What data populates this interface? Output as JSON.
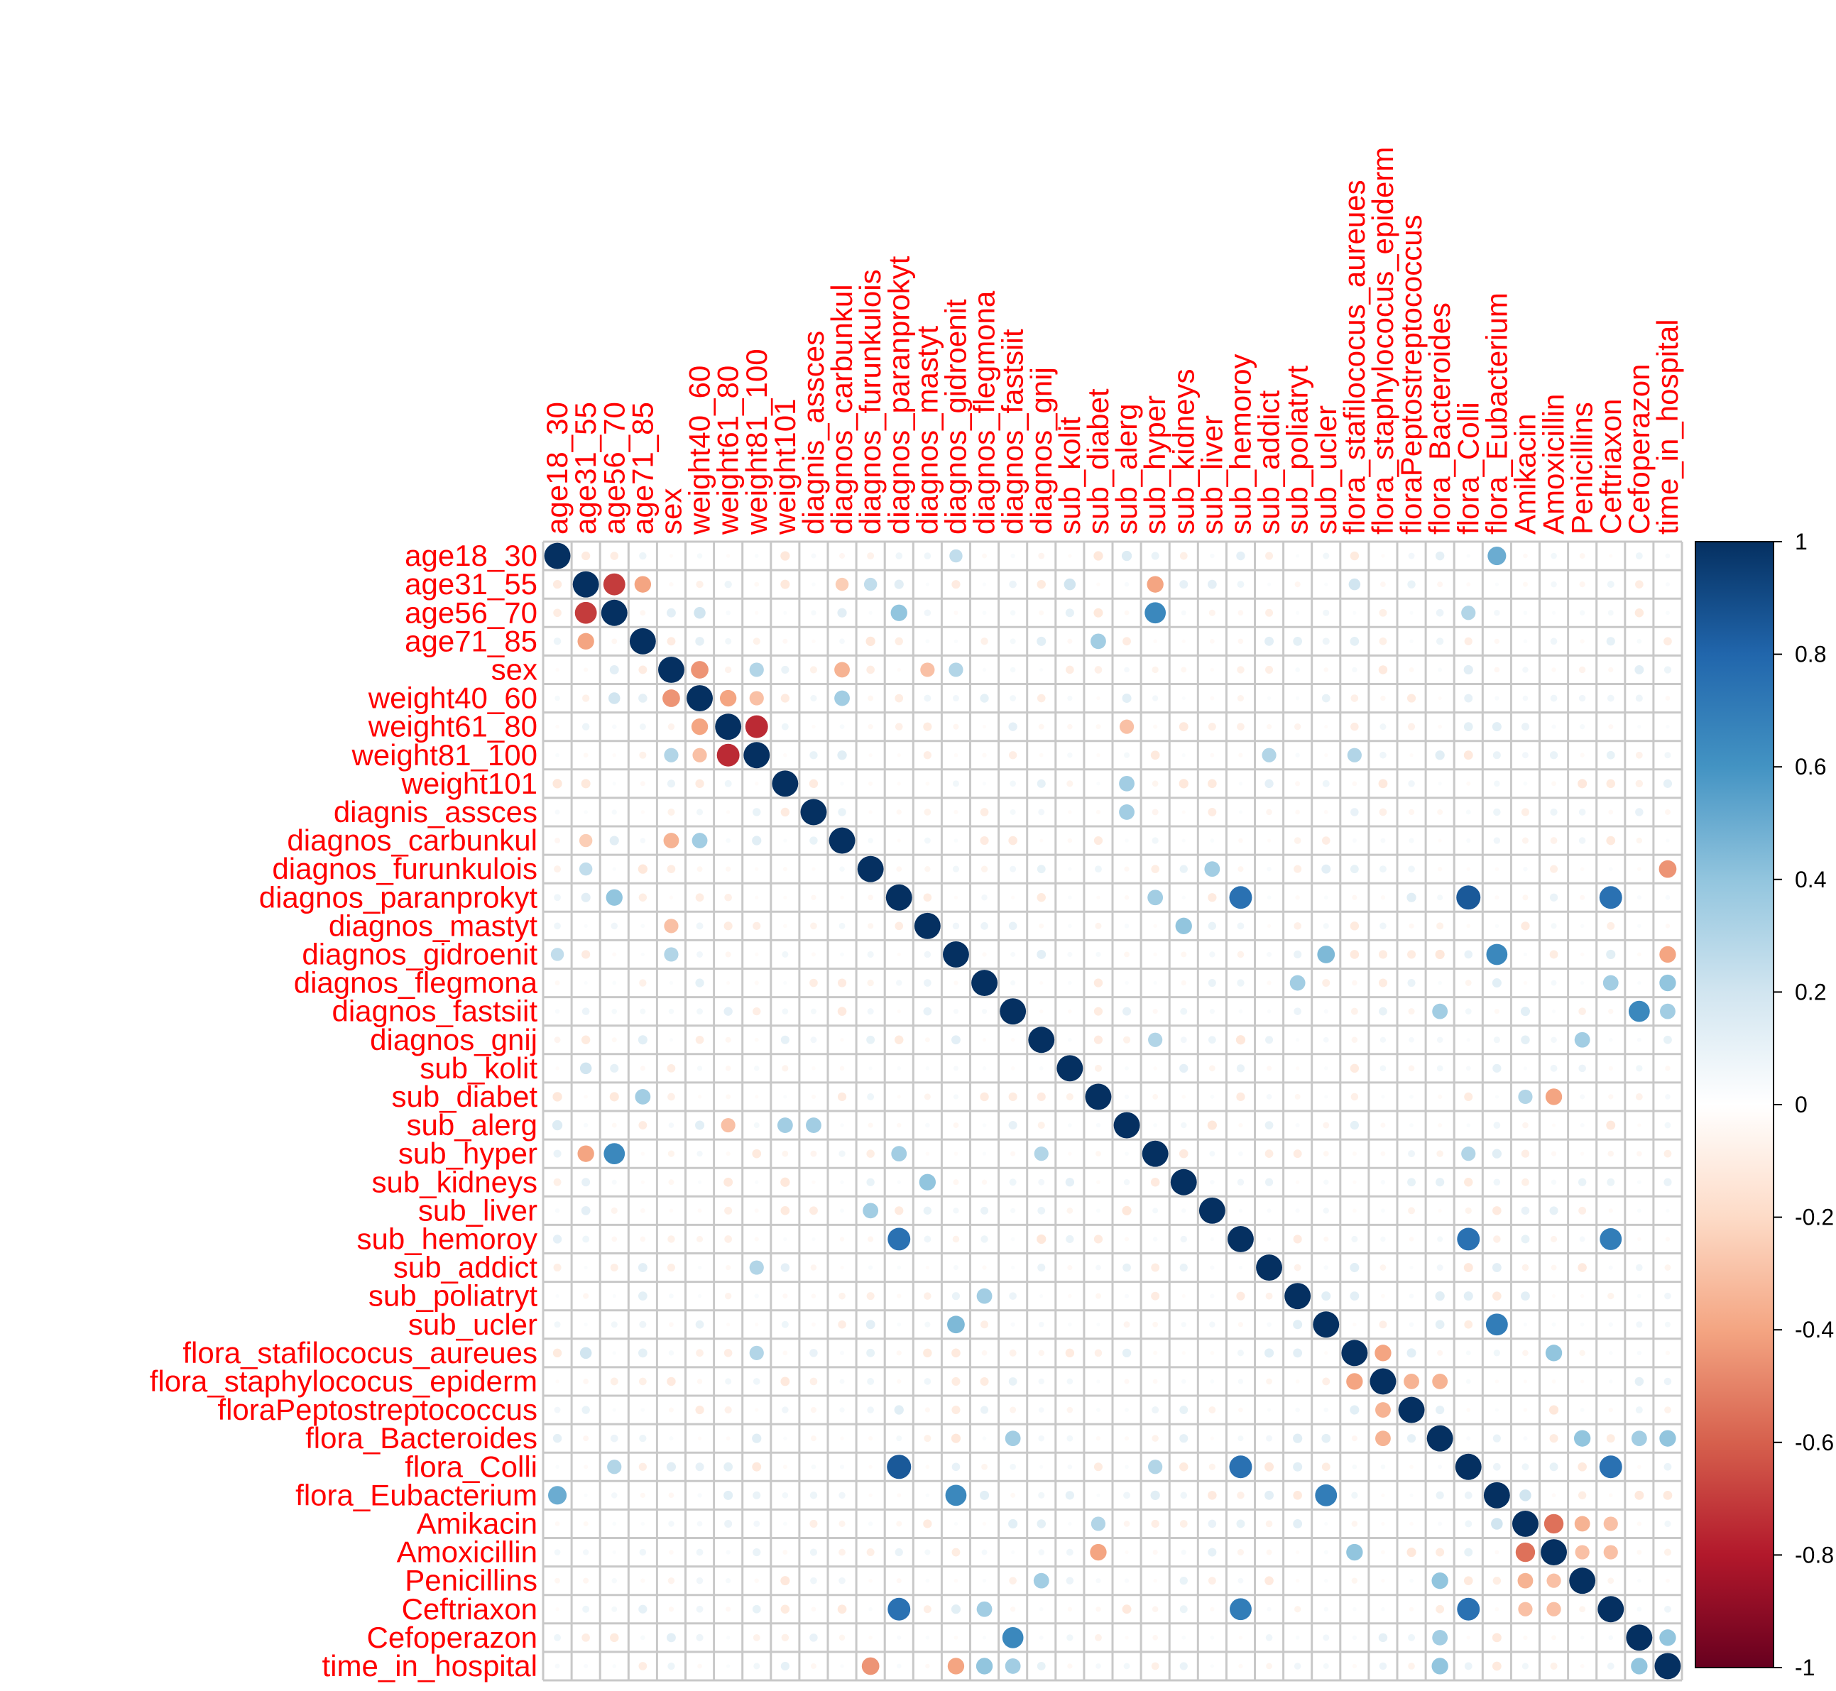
{
  "chart_data": {
    "type": "heatmap",
    "title": "",
    "variables": [
      "age18_30",
      "age31_55",
      "age56_70",
      "age71_85",
      "sex",
      "weight40_60",
      "weight61_80",
      "weight81_100",
      "weight101",
      "diagnis_assces",
      "diagnos_carbunkul",
      "diagnos_furunkulois",
      "diagnos_paranprokyt",
      "diagnos_mastyt",
      "diagnos_gidroenit",
      "diagnos_flegmona",
      "diagnos_fastsiit",
      "diagnos_gnij",
      "sub_kolit",
      "sub_diabet",
      "sub_alerg",
      "sub_hyper",
      "sub_kidneys",
      "sub_liver",
      "sub_hemoroy",
      "sub_addict",
      "sub_poliatryt",
      "sub_ucler",
      "flora_stafilococus_aureues",
      "flora_staphylococus_epiderm",
      "floraPeptostreptococcus",
      "flora_Bacteroides",
      "flora_Colli",
      "flora_Eubacterium",
      "Amikacin",
      "Amoxicillin",
      "Penicillins",
      "Ceftriaxon",
      "Cefoperazon",
      "time_in_hospital"
    ],
    "correlations": [
      {
        "row": "age18_30",
        "col": "flora_Eubacterium",
        "value": 0.5
      },
      {
        "row": "age18_30",
        "col": "diagnos_gidroenit",
        "value": 0.25
      },
      {
        "row": "age18_30",
        "col": "sub_alerg",
        "value": 0.15
      },
      {
        "row": "age31_55",
        "col": "age56_70",
        "value": -0.7
      },
      {
        "row": "age31_55",
        "col": "age71_85",
        "value": -0.4
      },
      {
        "row": "age31_55",
        "col": "sub_hyper",
        "value": -0.4
      },
      {
        "row": "age31_55",
        "col": "diagnos_carbunkul",
        "value": -0.25
      },
      {
        "row": "age31_55",
        "col": "diagnos_furunkulois",
        "value": 0.25
      },
      {
        "row": "age31_55",
        "col": "flora_stafilococus_aureues",
        "value": 0.2
      },
      {
        "row": "age31_55",
        "col": "sub_kolit",
        "value": 0.2
      },
      {
        "row": "age56_70",
        "col": "sub_hyper",
        "value": 0.65
      },
      {
        "row": "age56_70",
        "col": "diagnos_paranprokyt",
        "value": 0.4
      },
      {
        "row": "age56_70",
        "col": "weight40_60",
        "value": 0.2
      },
      {
        "row": "age56_70",
        "col": "flora_Colli",
        "value": 0.3
      },
      {
        "row": "age71_85",
        "col": "sub_diabet",
        "value": 0.35
      },
      {
        "row": "sex",
        "col": "weight40_60",
        "value": -0.45
      },
      {
        "row": "sex",
        "col": "weight81_100",
        "value": 0.3
      },
      {
        "row": "sex",
        "col": "diagnos_carbunkul",
        "value": -0.35
      },
      {
        "row": "sex",
        "col": "diagnos_mastyt",
        "value": -0.3
      },
      {
        "row": "sex",
        "col": "diagnos_gidroenit",
        "value": 0.3
      },
      {
        "row": "weight40_60",
        "col": "weight61_80",
        "value": -0.4
      },
      {
        "row": "weight40_60",
        "col": "weight81_100",
        "value": -0.3
      },
      {
        "row": "weight40_60",
        "col": "diagnos_carbunkul",
        "value": 0.35
      },
      {
        "row": "weight61_80",
        "col": "weight81_100",
        "value": -0.75
      },
      {
        "row": "weight61_80",
        "col": "sub_alerg",
        "value": -0.3
      },
      {
        "row": "weight81_100",
        "col": "sub_addict",
        "value": 0.3
      },
      {
        "row": "weight81_100",
        "col": "flora_stafilococus_aureues",
        "value": 0.3
      },
      {
        "row": "weight101",
        "col": "sub_alerg",
        "value": 0.35
      },
      {
        "row": "diagnis_assces",
        "col": "sub_alerg",
        "value": 0.35
      },
      {
        "row": "diagnos_furunkulois",
        "col": "sub_liver",
        "value": 0.35
      },
      {
        "row": "diagnos_furunkulois",
        "col": "time_in_hospital",
        "value": -0.45
      },
      {
        "row": "diagnos_paranprokyt",
        "col": "sub_hemoroy",
        "value": 0.75
      },
      {
        "row": "diagnos_paranprokyt",
        "col": "flora_Colli",
        "value": 0.85
      },
      {
        "row": "diagnos_paranprokyt",
        "col": "Ceftriaxon",
        "value": 0.75
      },
      {
        "row": "diagnos_paranprokyt",
        "col": "sub_hyper",
        "value": 0.35
      },
      {
        "row": "diagnos_mastyt",
        "col": "sub_kidneys",
        "value": 0.4
      },
      {
        "row": "diagnos_gidroenit",
        "col": "flora_Eubacterium",
        "value": 0.65
      },
      {
        "row": "diagnos_gidroenit",
        "col": "sub_ucler",
        "value": 0.45
      },
      {
        "row": "diagnos_gidroenit",
        "col": "time_in_hospital",
        "value": -0.4
      },
      {
        "row": "diagnos_flegmona",
        "col": "sub_poliatryt",
        "value": 0.35
      },
      {
        "row": "diagnos_flegmona",
        "col": "Ceftriaxon",
        "value": 0.35
      },
      {
        "row": "diagnos_flegmona",
        "col": "time_in_hospital",
        "value": 0.4
      },
      {
        "row": "diagnos_fastsiit",
        "col": "Cefoperazon",
        "value": 0.65
      },
      {
        "row": "diagnos_fastsiit",
        "col": "time_in_hospital",
        "value": 0.35
      },
      {
        "row": "diagnos_fastsiit",
        "col": "flora_Bacteroides",
        "value": 0.35
      },
      {
        "row": "diagnos_gnij",
        "col": "Penicillins",
        "value": 0.35
      },
      {
        "row": "diagnos_gnij",
        "col": "sub_hyper",
        "value": 0.3
      },
      {
        "row": "sub_diabet",
        "col": "Amoxicillin",
        "value": -0.4
      },
      {
        "row": "sub_diabet",
        "col": "Amikacin",
        "value": 0.3
      },
      {
        "row": "sub_hyper",
        "col": "flora_Colli",
        "value": 0.3
      },
      {
        "row": "sub_hemoroy",
        "col": "flora_Colli",
        "value": 0.75
      },
      {
        "row": "sub_hemoroy",
        "col": "Ceftriaxon",
        "value": 0.7
      },
      {
        "row": "sub_ucler",
        "col": "flora_Eubacterium",
        "value": 0.7
      },
      {
        "row": "flora_stafilococus_aureues",
        "col": "flora_staphylococus_epiderm",
        "value": -0.4
      },
      {
        "row": "flora_stafilococus_aureues",
        "col": "Amoxicillin",
        "value": 0.4
      },
      {
        "row": "flora_staphylococus_epiderm",
        "col": "floraPeptostreptococcus",
        "value": -0.35
      },
      {
        "row": "flora_staphylococus_epiderm",
        "col": "flora_Bacteroides",
        "value": -0.35
      },
      {
        "row": "flora_Bacteroides",
        "col": "Penicillins",
        "value": 0.4
      },
      {
        "row": "flora_Bacteroides",
        "col": "time_in_hospital",
        "value": 0.4
      },
      {
        "row": "flora_Bacteroides",
        "col": "Cefoperazon",
        "value": 0.35
      },
      {
        "row": "flora_Colli",
        "col": "Ceftriaxon",
        "value": 0.75
      },
      {
        "row": "flora_Eubacterium",
        "col": "Amikacin",
        "value": 0.2
      },
      {
        "row": "Amikacin",
        "col": "Amoxicillin",
        "value": -0.55
      },
      {
        "row": "Amikacin",
        "col": "Penicillins",
        "value": -0.35
      },
      {
        "row": "Amikacin",
        "col": "Ceftriaxon",
        "value": -0.3
      },
      {
        "row": "Amoxicillin",
        "col": "Penicillins",
        "value": -0.3
      },
      {
        "row": "Amoxicillin",
        "col": "Ceftriaxon",
        "value": -0.3
      },
      {
        "row": "Cefoperazon",
        "col": "time_in_hospital",
        "value": 0.4
      }
    ],
    "diagonal_value": 1,
    "colorbar": {
      "ticks": [
        "1",
        "0.8",
        "0.6",
        "0.4",
        "0.2",
        "0",
        "-0.2",
        "-0.4",
        "-0.6",
        "-0.8",
        "-1"
      ],
      "range": [
        -1,
        1
      ],
      "colors": [
        "#67001f",
        "#b2182b",
        "#d6604d",
        "#f4a582",
        "#fddbc7",
        "#ffffff",
        "#d1e5f0",
        "#92c5de",
        "#4393c3",
        "#2166ac",
        "#053061"
      ]
    },
    "label_color": "#ff0000",
    "grid": true
  }
}
